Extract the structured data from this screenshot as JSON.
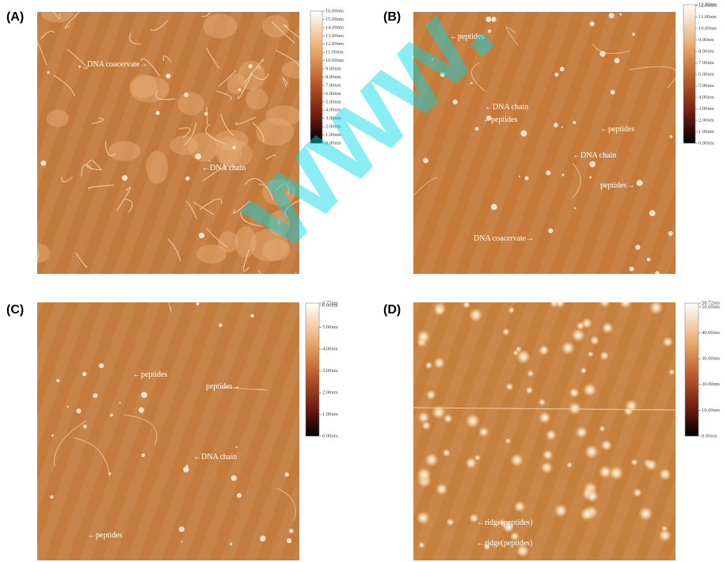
{
  "panels": [
    {
      "label": "(A)",
      "annotations": [
        "DNA coacervate→",
        "←DNA chain"
      ],
      "colorbar": [
        "16.00nm",
        "15.00nm",
        "14.00nm",
        "13.00nm",
        "12.00nm",
        "11.00nm",
        "10.00nm",
        "9.00nm",
        "8.00nm",
        "7.00nm",
        "6.00nm",
        "5.00nm",
        "4.00nm",
        "3.00nm",
        "2.00nm",
        "1.00nm",
        "0.00nm"
      ]
    },
    {
      "label": "(B)",
      "annotations": [
        "←peptides",
        "←DNA chain",
        "←peptides",
        "←peptides",
        "←DNA chain",
        "peptides→",
        "DNA coacervate→"
      ],
      "colorbar": [
        "12.92nm",
        "12.00nm",
        "11.00nm",
        "10.00nm",
        "9.00nm",
        "8.00nm",
        "7.00nm",
        "6.00nm",
        "5.00nm",
        "4.00nm",
        "3.00nm",
        "2.00nm",
        "1.00nm",
        "0.00nm"
      ]
    },
    {
      "label": "(C)",
      "annotations": [
        "←peptides",
        "peptides→",
        "←DNA chain",
        "←peptides"
      ],
      "colorbar": [
        "6.77nm",
        "6.00nm",
        "5.00nm",
        "4.00nm",
        "3.00nm",
        "2.00nm",
        "1.00nm",
        "0.00nm"
      ]
    },
    {
      "label": "(D)",
      "annotations": [
        "←ridge(peptides)",
        "←ridge(peptides)"
      ],
      "colorbar": [
        "58.72nm",
        "50.00nm",
        "40.00nm",
        "30.00nm",
        "20.00nm",
        "10.00nm",
        "0.00nm"
      ]
    }
  ],
  "watermark": "www."
}
